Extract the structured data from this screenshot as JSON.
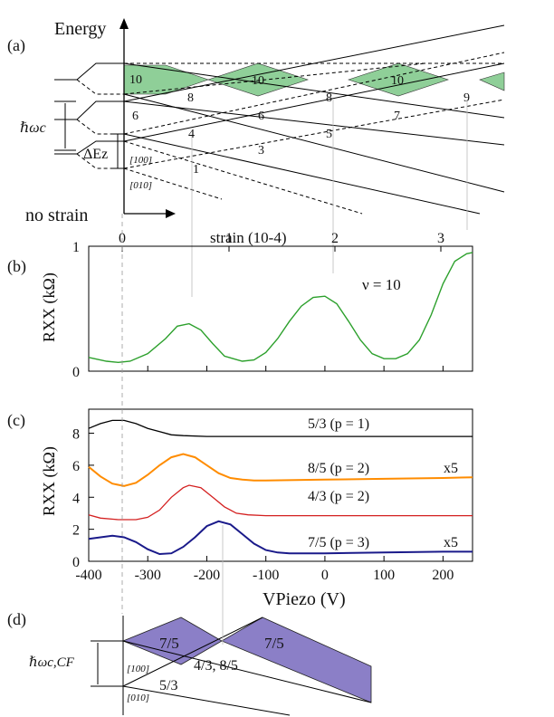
{
  "panel_labels": {
    "a": "(a)",
    "b": "(b)",
    "c": "(c)",
    "d": "(d)"
  },
  "panel_a": {
    "energy_label": "Energy",
    "no_strain_label": "no strain",
    "strain_axis_label": "strain (10-4)",
    "hw_label": "ℏωc",
    "dEz_label": "ΔEz",
    "dir_100": "[100]",
    "dir_010": "[010]",
    "level_labels": [
      "10",
      "8",
      "10",
      "8",
      "10",
      "9",
      "6",
      "6",
      "7",
      "4",
      "5",
      "3",
      "1"
    ],
    "fill_color": "#8fcf98"
  },
  "chart_data": [
    {
      "panel": "b",
      "type": "line",
      "top_axis_label": "strain (10-4)",
      "top_ticks": [
        "0",
        "1",
        "2",
        "3"
      ],
      "ylabel": "RXX (kΩ)",
      "xlim": [
        -400,
        250
      ],
      "ylim": [
        0,
        1.0
      ],
      "yticks": [
        "0",
        "1"
      ],
      "annotation": "ν = 10",
      "color": "#2ca02c",
      "series": [
        {
          "x": [
            -400,
            -370,
            -350,
            -330,
            -300,
            -270,
            -250,
            -230,
            -210,
            -190,
            -170,
            -140,
            -120,
            -100,
            -80,
            -60,
            -40,
            -20,
            0,
            20,
            40,
            60,
            80,
            100,
            120,
            140,
            160,
            180,
            200,
            220,
            240,
            250
          ],
          "values": [
            0.11,
            0.08,
            0.07,
            0.08,
            0.14,
            0.26,
            0.36,
            0.38,
            0.33,
            0.22,
            0.12,
            0.08,
            0.09,
            0.15,
            0.26,
            0.4,
            0.52,
            0.59,
            0.6,
            0.54,
            0.4,
            0.25,
            0.14,
            0.1,
            0.1,
            0.14,
            0.25,
            0.45,
            0.7,
            0.88,
            0.94,
            0.95
          ]
        }
      ]
    },
    {
      "panel": "c",
      "type": "line",
      "xlabel": "VPiezo (V)",
      "ylabel": "RXX (kΩ)",
      "xlim": [
        -400,
        250
      ],
      "ylim": [
        0,
        9.5
      ],
      "xticks": [
        "-400",
        "-300",
        "-200",
        "-100",
        "0",
        "100",
        "200"
      ],
      "yticks": [
        "0",
        "2",
        "4",
        "6",
        "8"
      ],
      "series": [
        {
          "name": "5/3  (p = 1)",
          "color": "#000000",
          "scale": "",
          "x": [
            -400,
            -380,
            -360,
            -340,
            -320,
            -300,
            -280,
            -260,
            -240,
            -200,
            -100,
            0,
            100,
            200,
            250
          ],
          "values": [
            8.3,
            8.6,
            8.8,
            8.8,
            8.6,
            8.3,
            8.1,
            7.9,
            7.85,
            7.8,
            7.8,
            7.8,
            7.8,
            7.8,
            7.8
          ]
        },
        {
          "name": "8/5  (p = 2)",
          "color": "#ff8c00",
          "scale": "x5",
          "x": [
            -400,
            -380,
            -360,
            -340,
            -320,
            -300,
            -280,
            -260,
            -240,
            -220,
            -200,
            -180,
            -160,
            -140,
            -120,
            -100,
            0,
            100,
            200,
            250
          ],
          "values": [
            5.9,
            5.3,
            4.85,
            4.7,
            4.9,
            5.4,
            6.0,
            6.5,
            6.7,
            6.5,
            6.0,
            5.5,
            5.2,
            5.1,
            5.05,
            5.05,
            5.1,
            5.15,
            5.2,
            5.25
          ]
        },
        {
          "name": "4/3  (p = 2)",
          "color": "#d42020",
          "scale": "",
          "x": [
            -400,
            -380,
            -350,
            -320,
            -300,
            -280,
            -260,
            -240,
            -230,
            -210,
            -190,
            -170,
            -150,
            -130,
            -100,
            0,
            100,
            200,
            250
          ],
          "values": [
            2.9,
            2.7,
            2.6,
            2.6,
            2.75,
            3.2,
            4.0,
            4.6,
            4.75,
            4.6,
            4.0,
            3.4,
            3.0,
            2.9,
            2.85,
            2.85,
            2.85,
            2.85,
            2.85
          ]
        },
        {
          "name": "7/5  (p = 3)",
          "color": "#1a1a8a",
          "scale": "x5",
          "x": [
            -400,
            -380,
            -360,
            -340,
            -320,
            -300,
            -280,
            -260,
            -240,
            -220,
            -200,
            -180,
            -160,
            -140,
            -120,
            -100,
            -80,
            -60,
            0,
            100,
            200,
            250
          ],
          "values": [
            1.4,
            1.5,
            1.6,
            1.5,
            1.2,
            0.75,
            0.45,
            0.5,
            0.9,
            1.5,
            2.2,
            2.5,
            2.3,
            1.7,
            1.1,
            0.7,
            0.55,
            0.5,
            0.5,
            0.55,
            0.6,
            0.6
          ]
        }
      ]
    }
  ],
  "panel_d": {
    "hw_label": "ℏωc,CF",
    "dir_100": "[100]",
    "dir_010": "[010]",
    "fill_label_1": "7/5",
    "fill_label_2": "7/5",
    "mid_label": "4/3, 8/5",
    "low_label": "5/3",
    "fill_color": "#8b7fc7"
  }
}
